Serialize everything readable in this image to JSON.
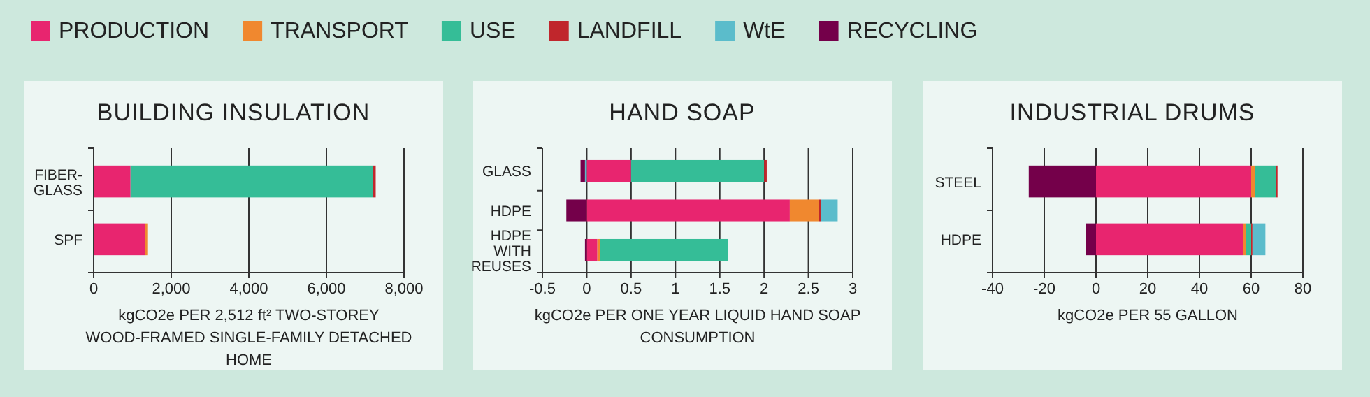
{
  "chart_data": [
    {
      "type": "bar",
      "orientation": "horizontal",
      "stacked": true,
      "title": "BUILDING INSULATION",
      "xlabel": "kgCO2e PER 2,512 ft² TWO-STOREY WOOD-FRAMED SINGLE-FAMILY DETACHED HOME",
      "categories": [
        "FIBER-GLASS",
        "SPF"
      ],
      "xlim": [
        0,
        8000
      ],
      "xticks": [
        0,
        {
          "value": 2000,
          "label": "2,000"
        },
        {
          "value": 4000,
          "label": "4,000"
        },
        {
          "value": 6000,
          "label": "6,000"
        },
        {
          "value": 8000,
          "label": "8,000"
        }
      ],
      "grid": "x",
      "legend": "top",
      "series": [
        {
          "name": "PRODUCTION",
          "color": "#e8256f",
          "values": [
            950,
            1330
          ]
        },
        {
          "name": "TRANSPORT",
          "color": "#f0882f",
          "values": [
            null,
            70
          ]
        },
        {
          "name": "USE",
          "color": "#35bd97",
          "values": [
            6250,
            null
          ]
        },
        {
          "name": "LANDFILL",
          "color": "#c0262c",
          "values": [
            70,
            null
          ]
        },
        {
          "name": "WtE",
          "color": "#5bbccb",
          "values": [
            null,
            null
          ]
        },
        {
          "name": "RECYCLING",
          "color": "#74004a",
          "values": [
            null,
            null
          ]
        }
      ]
    },
    {
      "type": "bar",
      "orientation": "horizontal",
      "stacked": true,
      "title": "HAND SOAP",
      "xlabel": "kgCO2e PER ONE YEAR LIQUID HAND SOAP CONSUMPTION",
      "categories": [
        "GLASS",
        "HDPE",
        "HDPE WITH REUSES"
      ],
      "xlim": [
        -0.5,
        3
      ],
      "xticks": [
        -0.5,
        0,
        0.5,
        1,
        1.5,
        2,
        2.5,
        3
      ],
      "grid": "x",
      "series": [
        {
          "color": "#e8256f",
          "values": [
            0.5,
            2.29,
            0.12
          ]
        },
        {
          "color": "#f0882f",
          "values": [
            null,
            0.33,
            0.03
          ]
        },
        {
          "color": "#35bd97",
          "values": [
            1.5,
            null,
            1.44
          ]
        },
        {
          "color": "#c0262c",
          "values": [
            0.03,
            0.02,
            null
          ]
        },
        {
          "color": "#5bbccb",
          "values": [
            -0.02,
            0.19,
            null
          ]
        },
        {
          "color": "#74004a",
          "values": [
            -0.05,
            -0.23,
            -0.02
          ]
        }
      ]
    },
    {
      "type": "bar",
      "orientation": "horizontal",
      "stacked": true,
      "title": "INDUSTRIAL DRUMS",
      "xlabel": "kgCO2e PER 55 GALLON",
      "categories": [
        "STEEL",
        "HDPE"
      ],
      "xlim": [
        -40,
        80
      ],
      "xticks": [
        -40,
        -20,
        0,
        20,
        40,
        60,
        80
      ],
      "grid": "x",
      "series": [
        {
          "color": "#e8256f",
          "values": [
            60,
            57
          ]
        },
        {
          "color": "#f0882f",
          "values": [
            1.5,
            1
          ]
        },
        {
          "color": "#35bd97",
          "values": [
            8,
            2
          ]
        },
        {
          "color": "#c0262c",
          "values": [
            0.7,
            0.5
          ]
        },
        {
          "color": "#5bbccb",
          "values": [
            null,
            5
          ]
        },
        {
          "color": "#74004a",
          "values": [
            -26,
            -4
          ]
        }
      ]
    }
  ]
}
